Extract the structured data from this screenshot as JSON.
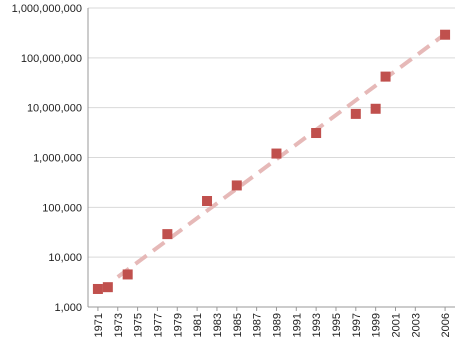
{
  "chart_data": {
    "type": "scatter",
    "log_y": true,
    "grid": true,
    "x": [
      1971,
      1972,
      1974,
      1978,
      1982,
      1985,
      1989,
      1993,
      1997,
      1999,
      2000,
      2006
    ],
    "values": [
      2300,
      2500,
      4500,
      29000,
      134000,
      275000,
      1200000,
      3100000,
      7500000,
      9500000,
      42000000,
      291000000
    ],
    "color": "#c0504d",
    "trendline": {
      "x": [
        1973,
        2006
      ],
      "values": [
        4000,
        300000000
      ],
      "color": "#e6b9b8"
    },
    "xlim": [
      1970,
      2007
    ],
    "xticks": [
      1971,
      1973,
      1975,
      1977,
      1979,
      1981,
      1983,
      1985,
      1987,
      1989,
      1991,
      1993,
      1995,
      1997,
      1999,
      2001,
      2003,
      2006
    ],
    "ylim": [
      1000,
      1000000000
    ],
    "yticks": [
      {
        "value": 1000,
        "label": "1,000"
      },
      {
        "value": 10000,
        "label": "10,000"
      },
      {
        "value": 100000,
        "label": "100,000"
      },
      {
        "value": 1000000,
        "label": "1,000,000"
      },
      {
        "value": 10000000,
        "label": "10,000,000"
      },
      {
        "value": 100000000,
        "label": "100,000,000"
      },
      {
        "value": 1000000000,
        "label": "1,000,000,000"
      }
    ]
  }
}
